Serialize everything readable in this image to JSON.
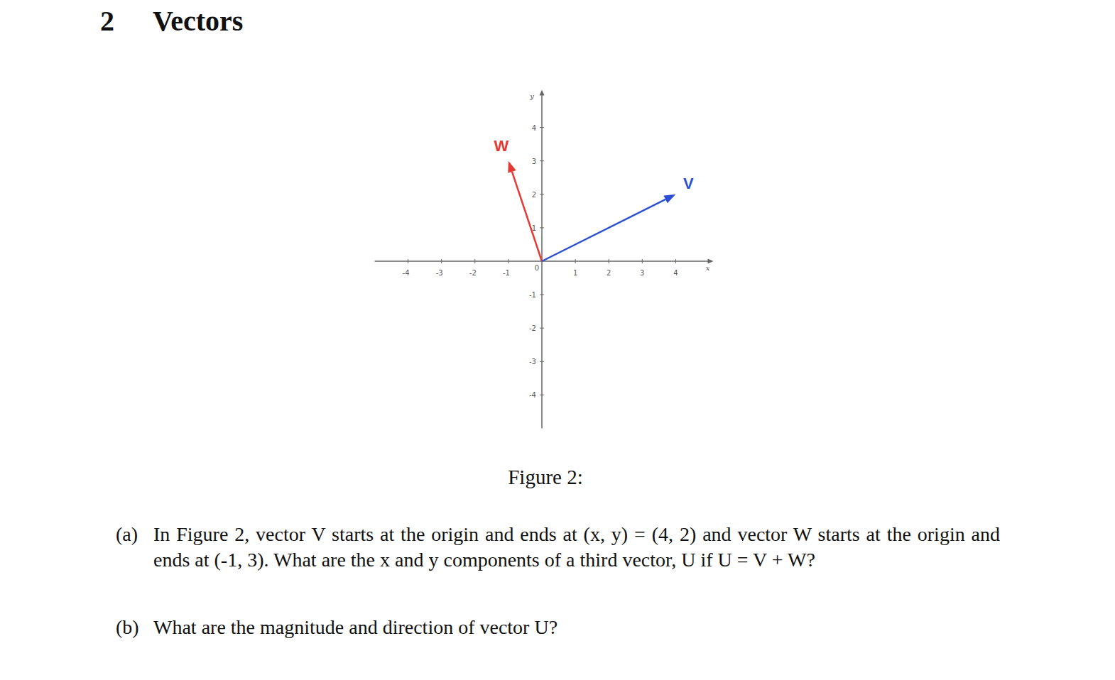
{
  "section": {
    "number": "2",
    "title": "Vectors"
  },
  "chart_data": {
    "type": "vector",
    "xlabel": "x",
    "ylabel": "y",
    "xlim": [
      -5,
      5
    ],
    "ylim": [
      -5,
      5
    ],
    "xticks": [
      -4,
      -3,
      -2,
      -1,
      0,
      1,
      2,
      3,
      4
    ],
    "yticks": [
      -4,
      -3,
      -2,
      -1,
      1,
      2,
      3,
      4
    ],
    "grid": false,
    "series": [
      {
        "name": "W",
        "color": "#e53935",
        "x": [
          -1
        ],
        "values": [
          3
        ]
      },
      {
        "name": "V",
        "color": "#2b50d6",
        "x": [
          4
        ],
        "values": [
          2
        ]
      }
    ]
  },
  "caption": "Figure 2:",
  "questions": [
    {
      "label": "(a)",
      "text": "In Figure 2, vector V starts at the origin and ends at (x, y) = (4, 2) and vector W starts at the origin and ends at (-1, 3). What are the x and y components of a third vector, U if U = V + W?"
    },
    {
      "label": "(b)",
      "text": "What are the magnitude and direction of vector U?"
    }
  ]
}
